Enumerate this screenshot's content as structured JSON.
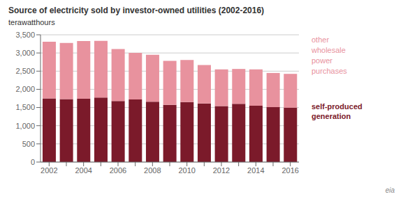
{
  "chart_data": {
    "type": "bar",
    "stacked": true,
    "title": "Source of electricity sold by investor-owned utilities (2002-2016)",
    "ylabel": "terawatthours",
    "categories": [
      "2002",
      null,
      "2004",
      null,
      "2006",
      null,
      "2008",
      null,
      "2010",
      null,
      "2012",
      null,
      "2014",
      null,
      "2016"
    ],
    "series": [
      {
        "name": "self-produced\ngeneration",
        "color": "#7b1a2a",
        "values": [
          1750,
          1730,
          1740,
          1775,
          1680,
          1720,
          1660,
          1575,
          1650,
          1610,
          1540,
          1600,
          1550,
          1510,
          1495
        ]
      },
      {
        "name": "other\nwholesale\npower\npurchases",
        "color": "#e8929e",
        "values": [
          1560,
          1545,
          1590,
          1560,
          1430,
          1285,
          1290,
          1210,
          1155,
          1060,
          1010,
          960,
          1000,
          940,
          930
        ]
      }
    ],
    "ylim": [
      0,
      3500
    ],
    "yticks": [
      0,
      500,
      {
        "value": 1000,
        "label": "1,000"
      },
      {
        "value": 1500,
        "label": "1,500"
      },
      {
        "value": 2000,
        "label": "2,000"
      },
      {
        "value": 2500,
        "label": "2,500"
      },
      {
        "value": 3000,
        "label": "3,000"
      },
      {
        "value": 3500,
        "label": "3,500"
      }
    ],
    "grid": true,
    "legend": "right",
    "annotations": [
      "eia"
    ]
  }
}
